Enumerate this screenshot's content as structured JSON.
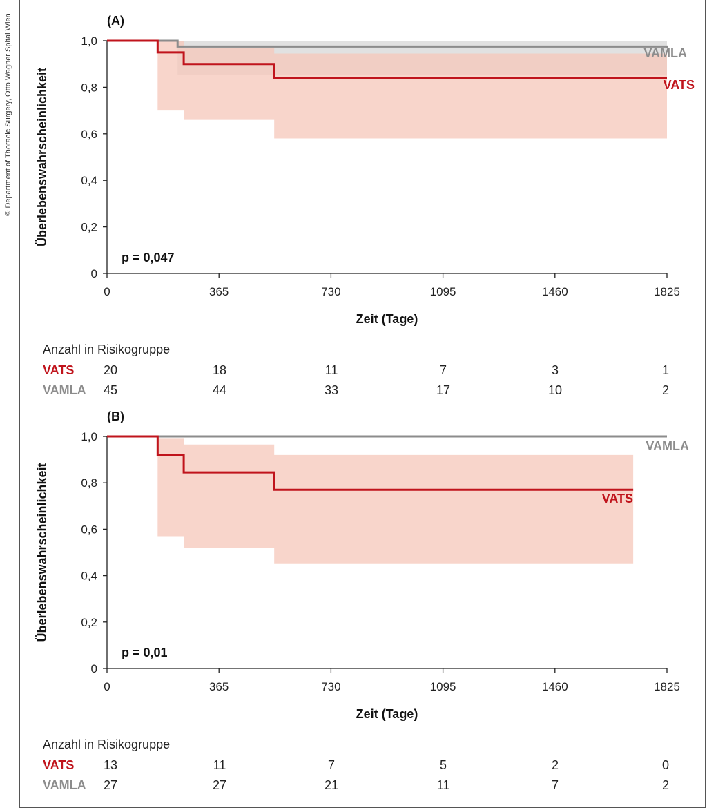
{
  "copyright": "© Department of Thoracic Surgery, Otto Wagner Spital Wien",
  "colors": {
    "vats": "#c0141c",
    "vats_ci": "#f5c7ba",
    "vamla": "#8c8c8c",
    "vamla_ci": "#dedede"
  },
  "chart_data": [
    {
      "type": "line",
      "panel_label": "(A)",
      "xlabel": "Zeit (Tage)",
      "ylabel": "Überlebenswahrscheinlichkeit",
      "xlim": [
        0,
        1825
      ],
      "ylim": [
        0,
        1.0
      ],
      "x_ticks": [
        0,
        365,
        730,
        1095,
        1460,
        1825
      ],
      "x_tick_labels": [
        "0",
        "365",
        "730",
        "1095",
        "1460",
        "1825"
      ],
      "y_ticks": [
        0,
        0.2,
        0.4,
        0.6,
        0.8,
        1.0
      ],
      "y_tick_labels": [
        "0",
        "0,2",
        "0,4",
        "0,6",
        "0,8",
        "1,0"
      ],
      "annotation": {
        "prefix": "p = ",
        "value": "0,047"
      },
      "series": [
        {
          "name": "VATS",
          "step_x": [
            0,
            165,
            250,
            545,
            1825
          ],
          "step_y": [
            1.0,
            0.95,
            0.9,
            0.84,
            0.84
          ],
          "ci_upper": [
            1.0,
            1.0,
            0.97,
            0.945,
            0.945
          ],
          "ci_lower": [
            1.0,
            0.7,
            0.66,
            0.58,
            0.58
          ],
          "ci_end": 1825
        },
        {
          "name": "VAMLA",
          "step_x": [
            0,
            230,
            1825
          ],
          "step_y": [
            1.0,
            0.975,
            0.97
          ],
          "ci_upper": [
            1.0,
            1.0,
            1.0
          ],
          "ci_lower": [
            1.0,
            0.855,
            0.855
          ],
          "ci_end": 1825
        }
      ]
    },
    {
      "type": "line",
      "panel_label": "(B)",
      "xlabel": "Zeit (Tage)",
      "ylabel": "Überlebenswahrscheinlichkeit",
      "xlim": [
        0,
        1825
      ],
      "ylim": [
        0,
        1.0
      ],
      "x_ticks": [
        0,
        365,
        730,
        1095,
        1460,
        1825
      ],
      "x_tick_labels": [
        "0",
        "365",
        "730",
        "1095",
        "1460",
        "1825"
      ],
      "y_ticks": [
        0,
        0.2,
        0.4,
        0.6,
        0.8,
        1.0
      ],
      "y_tick_labels": [
        "0",
        "0,2",
        "0,4",
        "0,6",
        "0,8",
        "1,0"
      ],
      "annotation": {
        "prefix": "p = ",
        "value": "0,01"
      },
      "series": [
        {
          "name": "VATS",
          "step_x": [
            0,
            165,
            250,
            545,
            1715
          ],
          "step_y": [
            1.0,
            0.92,
            0.845,
            0.77,
            0.77
          ],
          "ci_upper": [
            1.0,
            0.99,
            0.965,
            0.92,
            0.92
          ],
          "ci_lower": [
            1.0,
            0.57,
            0.52,
            0.45,
            0.45
          ],
          "ci_end": 1715
        },
        {
          "name": "VAMLA",
          "step_x": [
            0,
            1825
          ],
          "step_y": [
            1.0,
            1.0
          ],
          "ci_upper": [
            1.0,
            1.0
          ],
          "ci_lower": [
            1.0,
            1.0
          ],
          "ci_end": 1825
        }
      ]
    }
  ],
  "risk_tables": [
    {
      "title": "Anzahl in Risikogruppe",
      "rows": [
        {
          "label": "VATS",
          "values": [
            "20",
            "18",
            "11",
            "7",
            "3",
            "1"
          ]
        },
        {
          "label": "VAMLA",
          "values": [
            "45",
            "44",
            "33",
            "17",
            "10",
            "2"
          ]
        }
      ]
    },
    {
      "title": "Anzahl in Risikogruppe",
      "rows": [
        {
          "label": "VATS",
          "values": [
            "13",
            "11",
            "7",
            "5",
            "2",
            "0"
          ]
        },
        {
          "label": "VAMLA",
          "values": [
            "27",
            "27",
            "21",
            "11",
            "7",
            "2"
          ]
        }
      ]
    }
  ]
}
